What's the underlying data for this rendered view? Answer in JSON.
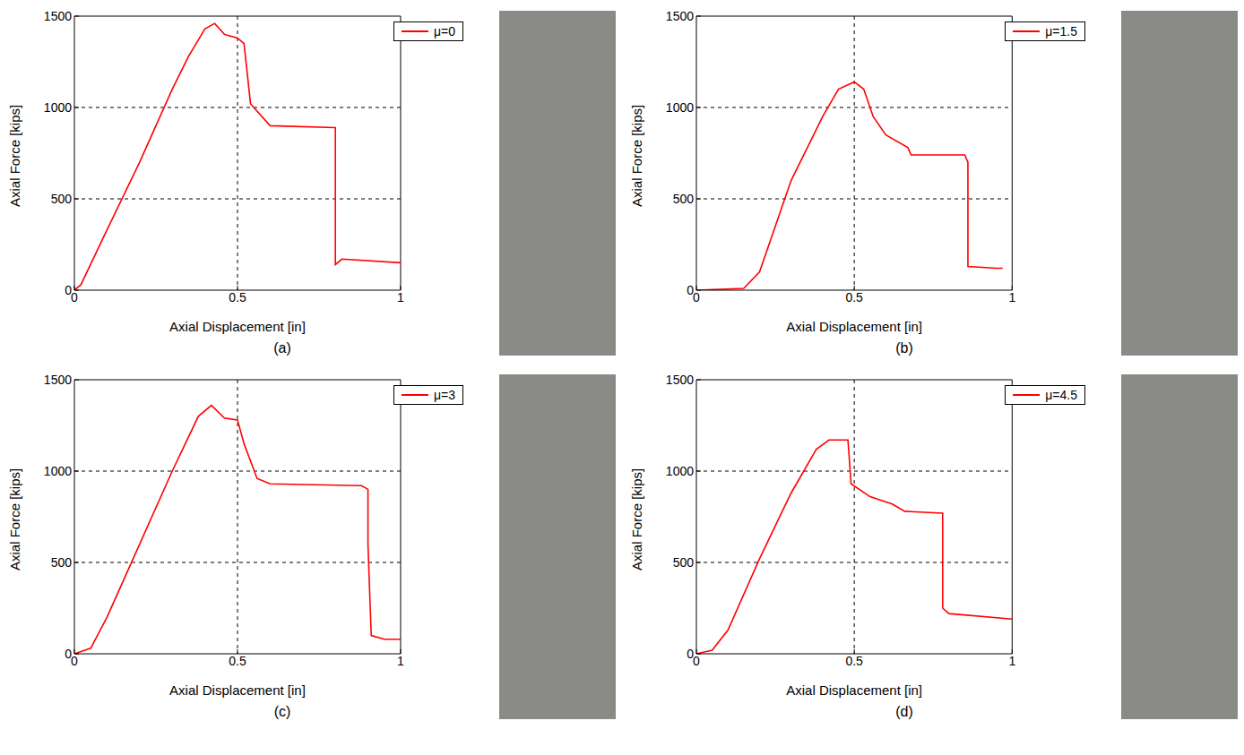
{
  "chart_data": [
    {
      "type": "line",
      "annotations": [
        "(a)"
      ],
      "x_label": "Axial Displacement [in]",
      "y_label": "Axial Force [kips]",
      "xlim": [
        0,
        1
      ],
      "xticks": [
        0,
        0.5,
        1
      ],
      "ylim": [
        0,
        1500
      ],
      "yticks": [
        0,
        500,
        1000,
        1500
      ],
      "grid": true,
      "legend": "upper right",
      "series": [
        {
          "name": "μ=0",
          "color": "#ff0000",
          "x": [
            0,
            0.02,
            0.1,
            0.2,
            0.3,
            0.35,
            0.4,
            0.43,
            0.46,
            0.5,
            0.52,
            0.54,
            0.6,
            0.8,
            0.8,
            0.82,
            1
          ],
          "values": [
            0,
            30,
            330,
            700,
            1100,
            1280,
            1430,
            1460,
            1400,
            1380,
            1350,
            1020,
            900,
            890,
            140,
            170,
            150
          ]
        }
      ]
    },
    {
      "type": "line",
      "annotations": [
        "(b)"
      ],
      "x_label": "Axial Displacement [in]",
      "y_label": "Axial Force [kips]",
      "xlim": [
        0,
        1
      ],
      "xticks": [
        0,
        0.5,
        1
      ],
      "ylim": [
        0,
        1500
      ],
      "yticks": [
        0,
        500,
        1000,
        1500
      ],
      "grid": true,
      "legend": "upper right",
      "series": [
        {
          "name": "μ=1.5",
          "color": "#ff0000",
          "x": [
            0,
            0.15,
            0.2,
            0.3,
            0.4,
            0.45,
            0.5,
            0.53,
            0.56,
            0.6,
            0.67,
            0.68,
            0.85,
            0.86,
            0.86,
            0.95,
            0.97
          ],
          "values": [
            0,
            10,
            100,
            600,
            950,
            1100,
            1140,
            1100,
            950,
            850,
            780,
            740,
            740,
            700,
            130,
            120,
            120
          ]
        }
      ]
    },
    {
      "type": "line",
      "annotations": [
        "(c)"
      ],
      "x_label": "Axial Displacement [in]",
      "y_label": "Axial Force [kips]",
      "xlim": [
        0,
        1
      ],
      "xticks": [
        0,
        0.5,
        1
      ],
      "ylim": [
        0,
        1500
      ],
      "yticks": [
        0,
        500,
        1000,
        1500
      ],
      "grid": true,
      "legend": "upper right",
      "series": [
        {
          "name": "μ=3",
          "color": "#ff0000",
          "x": [
            0,
            0.05,
            0.1,
            0.2,
            0.3,
            0.38,
            0.42,
            0.46,
            0.5,
            0.52,
            0.56,
            0.6,
            0.88,
            0.9,
            0.9,
            0.91,
            0.95,
            1
          ],
          "values": [
            0,
            30,
            200,
            600,
            1000,
            1300,
            1360,
            1290,
            1280,
            1150,
            960,
            930,
            920,
            900,
            600,
            100,
            80,
            80
          ]
        }
      ]
    },
    {
      "type": "line",
      "annotations": [
        "(d)"
      ],
      "x_label": "Axial Displacement [in]",
      "y_label": "Axial Force [kips]",
      "xlim": [
        0,
        1
      ],
      "xticks": [
        0,
        0.5,
        1
      ],
      "ylim": [
        0,
        1500
      ],
      "yticks": [
        0,
        500,
        1000,
        1500
      ],
      "grid": true,
      "legend": "upper right",
      "series": [
        {
          "name": "μ=4.5",
          "color": "#ff0000",
          "x": [
            0,
            0.05,
            0.1,
            0.2,
            0.3,
            0.38,
            0.42,
            0.48,
            0.49,
            0.55,
            0.62,
            0.66,
            0.78,
            0.78,
            0.8,
            1
          ],
          "values": [
            0,
            20,
            130,
            520,
            880,
            1120,
            1170,
            1170,
            930,
            860,
            820,
            780,
            770,
            250,
            220,
            190
          ]
        }
      ]
    }
  ]
}
